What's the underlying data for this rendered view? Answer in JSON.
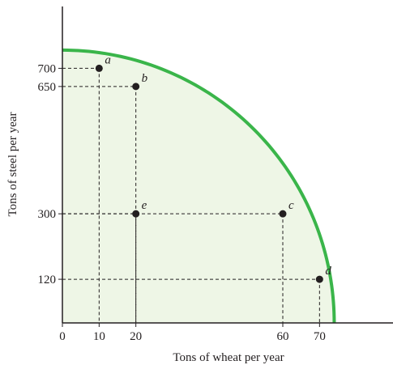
{
  "chart_data": {
    "type": "line",
    "xlabel": "Tons of wheat per year",
    "ylabel": "Tons of steel per year",
    "x_ticks": [
      {
        "value": 0,
        "label": "0"
      },
      {
        "value": 10,
        "label": "10"
      },
      {
        "value": 20,
        "label": "20"
      },
      {
        "value": 60,
        "label": "60"
      },
      {
        "value": 70,
        "label": "70"
      }
    ],
    "y_ticks": [
      {
        "value": 120,
        "label": "120"
      },
      {
        "value": 300,
        "label": "300"
      },
      {
        "value": 650,
        "label": "650"
      },
      {
        "value": 700,
        "label": "700"
      }
    ],
    "xlim": [
      0,
      90
    ],
    "ylim": [
      0,
      870
    ],
    "curve_intercepts": {
      "y": 750,
      "x": 74
    },
    "curve_color": "#3ab54a",
    "fill_color": "#eef6e6",
    "points": [
      {
        "label": "a",
        "x": 10,
        "y": 700,
        "on_curve": true
      },
      {
        "label": "b",
        "x": 20,
        "y": 650,
        "on_curve": true
      },
      {
        "label": "c",
        "x": 60,
        "y": 300,
        "on_curve": true
      },
      {
        "label": "d",
        "x": 70,
        "y": 120,
        "on_curve": true
      },
      {
        "label": "e",
        "x": 20,
        "y": 300,
        "on_curve": false
      }
    ],
    "guides": true,
    "grid": false,
    "legend": "none"
  }
}
